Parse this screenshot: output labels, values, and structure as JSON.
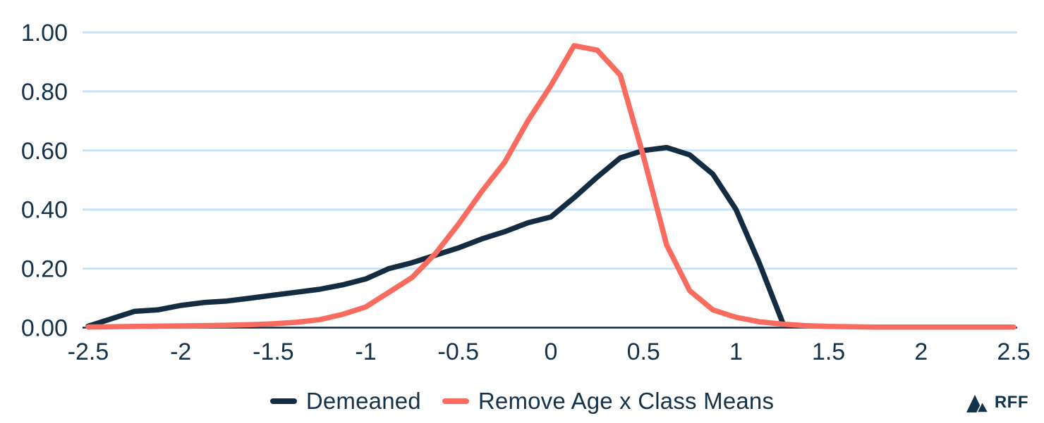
{
  "chart_data": {
    "type": "line",
    "grid": "horizontal",
    "legend_position": "bottom-center",
    "xlim": [
      -2.5,
      2.5
    ],
    "ylim": [
      0,
      1.0
    ],
    "x_tick_values": [
      -2.5,
      -2,
      -1.5,
      -1,
      -0.5,
      0,
      0.5,
      1,
      1.5,
      2,
      2.5
    ],
    "x_tick_labels": [
      "-2.5",
      "-2",
      "-1.5",
      "-1",
      "-0.5",
      "0",
      "0.5",
      "1",
      "1.5",
      "2",
      "2.5"
    ],
    "y_tick_values": [
      0,
      0.2,
      0.4,
      0.6,
      0.8,
      1.0
    ],
    "y_tick_labels": [
      "0.00",
      "0.20",
      "0.40",
      "0.60",
      "0.80",
      "1.00"
    ],
    "series": [
      {
        "name": "Demeaned",
        "color": "#132C41",
        "x": [
          -2.5,
          -2.375,
          -2.25,
          -2.125,
          -2.0,
          -1.875,
          -1.75,
          -1.625,
          -1.5,
          -1.375,
          -1.25,
          -1.125,
          -1.0,
          -0.875,
          -0.75,
          -0.625,
          -0.5,
          -0.375,
          -0.25,
          -0.125,
          0,
          0.125,
          0.25,
          0.375,
          0.5,
          0.625,
          0.75,
          0.875,
          1.0,
          1.125,
          1.25
        ],
        "y": [
          0.005,
          0.03,
          0.055,
          0.06,
          0.075,
          0.085,
          0.09,
          0.1,
          0.11,
          0.12,
          0.13,
          0.145,
          0.165,
          0.2,
          0.22,
          0.245,
          0.27,
          0.3,
          0.325,
          0.355,
          0.375,
          0.44,
          0.51,
          0.575,
          0.6,
          0.61,
          0.585,
          0.52,
          0.4,
          0.22,
          0.02
        ]
      },
      {
        "name": "Remove Age x Class Means",
        "color": "#F96B5F",
        "x": [
          -2.5,
          -2.375,
          -2.25,
          -2.125,
          -2.0,
          -1.875,
          -1.75,
          -1.625,
          -1.5,
          -1.375,
          -1.25,
          -1.125,
          -1.0,
          -0.875,
          -0.75,
          -0.625,
          -0.5,
          -0.375,
          -0.25,
          -0.125,
          0,
          0.125,
          0.25,
          0.375,
          0.5,
          0.625,
          0.75,
          0.875,
          1.0,
          1.125,
          1.25,
          1.375,
          1.5,
          1.625,
          1.75,
          1.875,
          2.0,
          2.125,
          2.25,
          2.375,
          2.5
        ],
        "y": [
          0.002,
          0.003,
          0.004,
          0.005,
          0.006,
          0.007,
          0.008,
          0.01,
          0.013,
          0.018,
          0.027,
          0.045,
          0.07,
          0.12,
          0.17,
          0.25,
          0.35,
          0.46,
          0.56,
          0.7,
          0.82,
          0.955,
          0.94,
          0.855,
          0.58,
          0.28,
          0.125,
          0.06,
          0.035,
          0.02,
          0.012,
          0.007,
          0.004,
          0.003,
          0.002,
          0.002,
          0.002,
          0.002,
          0.002,
          0.002,
          0.002
        ]
      }
    ]
  },
  "colors": {
    "background": "#FFFFFF",
    "gridline": "#CBE2F5",
    "axis_line": "#132C41",
    "tick_label": "#15324A"
  },
  "branding": {
    "logo_text": "RFF",
    "logo_icon": "mountains-icon",
    "logo_color": "#12334C"
  }
}
